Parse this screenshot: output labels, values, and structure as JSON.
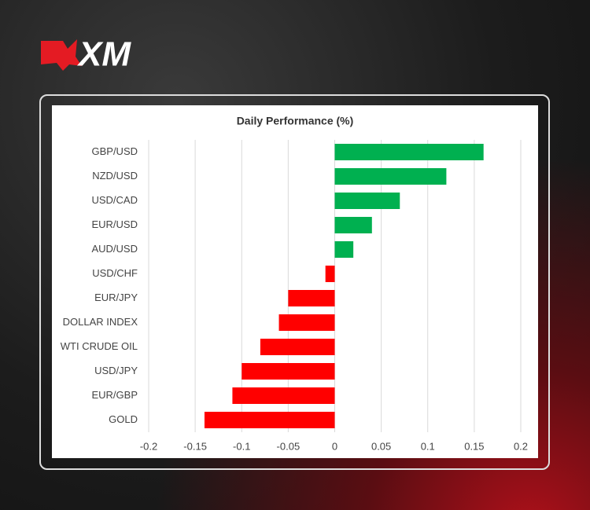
{
  "logo": "XM",
  "chart_data": {
    "type": "barh",
    "title": "Daily Performance (%)",
    "categories": [
      "GBP/USD",
      "NZD/USD",
      "USD/CAD",
      "EUR/USD",
      "AUD/USD",
      "USD/CHF",
      "EUR/JPY",
      "DOLLAR INDEX",
      "WTI CRUDE OIL",
      "USD/JPY",
      "EUR/GBP",
      "GOLD"
    ],
    "values": [
      0.16,
      0.12,
      0.07,
      0.04,
      0.02,
      -0.01,
      -0.05,
      -0.06,
      -0.08,
      -0.1,
      -0.11,
      -0.14
    ],
    "positive_color": "#00b050",
    "negative_color": "#ff0000",
    "xlim": [
      -0.2,
      0.2
    ],
    "xticks": [
      -0.2,
      -0.15,
      -0.1,
      -0.05,
      0,
      0.05,
      0.1,
      0.15,
      0.2
    ],
    "grid": true
  }
}
